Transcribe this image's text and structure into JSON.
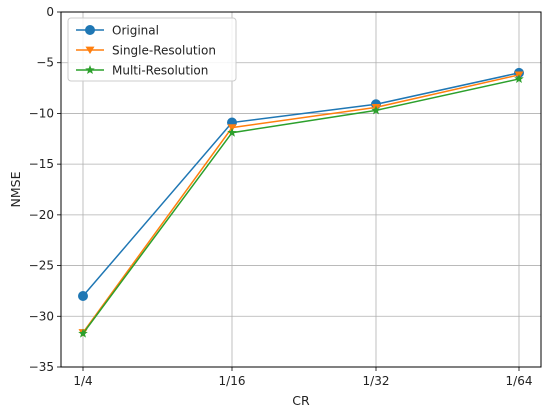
{
  "chart_data": {
    "type": "line",
    "xlabel": "CR",
    "ylabel": "NMSE",
    "categories": [
      "1/4",
      "1/16",
      "1/32",
      "1/64"
    ],
    "ylim": [
      -35,
      0
    ],
    "yticks": [
      0,
      -5,
      -10,
      -15,
      -20,
      -25,
      -30,
      -35
    ],
    "grid": true,
    "legend_position": "top-left",
    "series": [
      {
        "name": "Original",
        "values": [
          -28.0,
          -10.9,
          -9.1,
          -6.0
        ],
        "color": "#1f77b4",
        "marker": "circle"
      },
      {
        "name": "Single-Resolution",
        "values": [
          -31.6,
          -11.4,
          -9.4,
          -6.2
        ],
        "color": "#ff7f0e",
        "marker": "triangle-down"
      },
      {
        "name": "Multi-Resolution",
        "values": [
          -31.7,
          -11.9,
          -9.7,
          -6.6
        ],
        "color": "#2ca02c",
        "marker": "star"
      }
    ]
  }
}
